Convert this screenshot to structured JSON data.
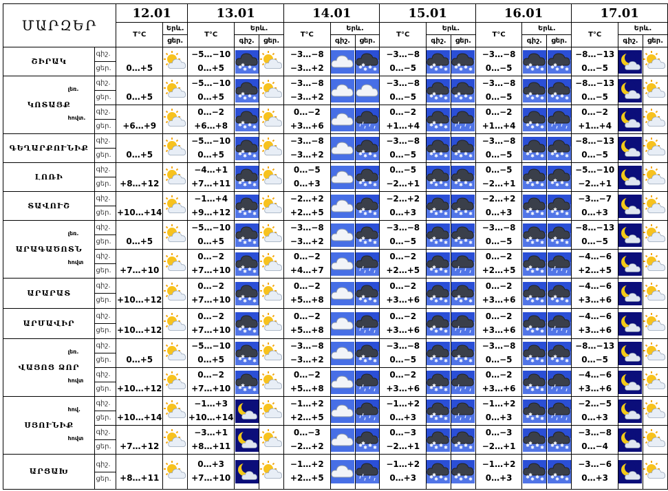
{
  "title": "ՄԱՐԶԵՐ",
  "dates": [
    "12.01",
    "13.01",
    "14.01",
    "15.01",
    "16.01",
    "17.01"
  ],
  "labels": {
    "temp": "Т°C",
    "sky": "Երև.",
    "night": "գիշ.",
    "day": "ցեր."
  },
  "rows": [
    {
      "name": "ՇԻՐԱԿ",
      "sub": "",
      "t": [
        [
          "",
          "0…+5"
        ],
        [
          "−5…−10",
          "0…+5"
        ],
        [
          "−3…−8",
          "−3…+2"
        ],
        [
          "−3…−8",
          "0…−5"
        ],
        [
          "−3…−8",
          "0…−5"
        ],
        [
          "−8…−13",
          "0…−5"
        ]
      ],
      "i": [
        [
          "sun_cloud"
        ],
        [
          "snow_cloud",
          "sun_cloud"
        ],
        [
          "cloud",
          "snow_cloud"
        ],
        [
          "snow_cloud",
          "snow_cloud"
        ],
        [
          "snow_cloud",
          "snow_cloud"
        ],
        [
          "moon_cloud",
          "sun_cloud"
        ]
      ]
    },
    {
      "name": "ԿՈՏԱՅՔ",
      "sub": "լեռ.",
      "t": [
        [
          "",
          "0…+5"
        ],
        [
          "−5…−10",
          "0…+5"
        ],
        [
          "−3…−8",
          "−3…+2"
        ],
        [
          "−3…−8",
          "0…−5"
        ],
        [
          "−3…−8",
          "0…−5"
        ],
        [
          "−8…−13",
          "0…−5"
        ]
      ],
      "i": [
        [
          "sun_cloud"
        ],
        [
          "snow_cloud",
          "sun_cloud"
        ],
        [
          "cloud",
          "cloud"
        ],
        [
          "snow_cloud",
          "snow_cloud"
        ],
        [
          "snow_cloud",
          "snow_cloud"
        ],
        [
          "moon_cloud",
          "sun_cloud"
        ]
      ]
    },
    {
      "name": "",
      "sub": "հովտ.",
      "t": [
        [
          "",
          "+6…+9"
        ],
        [
          "0…−2",
          "+6…+8"
        ],
        [
          "0…−2",
          "+3…+6"
        ],
        [
          "0…−2",
          "+1…+4"
        ],
        [
          "0…−2",
          "+1…+4"
        ],
        [
          "0…−2",
          "+1…+4"
        ]
      ],
      "i": [
        [
          "sun_cloud"
        ],
        [
          "snow_cloud",
          "sun_cloud"
        ],
        [
          "cloud",
          "rain_cloud"
        ],
        [
          "snow_cloud",
          "rain_cloud"
        ],
        [
          "snow_cloud",
          "rain_cloud"
        ],
        [
          "moon_cloud",
          "sun_cloud"
        ]
      ]
    },
    {
      "name": "ԳԵՂԱՐՔՈՒՆԻՔ",
      "sub": "",
      "t": [
        [
          "",
          "0…+5"
        ],
        [
          "−5…−10",
          "0…+5"
        ],
        [
          "−3…−8",
          "−3…+2"
        ],
        [
          "−3…−8",
          "0…−5"
        ],
        [
          "−3…−8",
          "0…−5"
        ],
        [
          "−8…−13",
          "0…−5"
        ]
      ],
      "i": [
        [
          "sun_cloud"
        ],
        [
          "snow_cloud",
          "sun_cloud"
        ],
        [
          "cloud",
          "snow_cloud"
        ],
        [
          "snow_cloud",
          "snow_cloud"
        ],
        [
          "snow_cloud",
          "snow_cloud"
        ],
        [
          "moon_cloud",
          "sun_cloud"
        ]
      ]
    },
    {
      "name": "ԼՈՌԻ",
      "sub": "",
      "t": [
        [
          "",
          "+8…+12"
        ],
        [
          "−4…+1",
          "+7…+11"
        ],
        [
          "0…−5",
          "0…+3"
        ],
        [
          "0…−5",
          "−2…+1"
        ],
        [
          "0…−5",
          "−2…+1"
        ],
        [
          "−5…−10",
          "−2…+1"
        ]
      ],
      "i": [
        [
          "sun_cloud"
        ],
        [
          "snow_cloud",
          "sun_cloud"
        ],
        [
          "cloud",
          "snow_cloud"
        ],
        [
          "snow_cloud",
          "snow_cloud"
        ],
        [
          "snow_cloud",
          "snow_cloud"
        ],
        [
          "moon_cloud",
          "sun_cloud"
        ]
      ]
    },
    {
      "name": "ՏԱՎՈՒՇ",
      "sub": "",
      "t": [
        [
          "",
          "+10…+14"
        ],
        [
          "−1…+4",
          "+9…+12"
        ],
        [
          "−2…+2",
          "+2…+5"
        ],
        [
          "−2…+2",
          "0…+3"
        ],
        [
          "−2…+2",
          "0…+3"
        ],
        [
          "−3…−7",
          "0…+3"
        ]
      ],
      "i": [
        [
          "sun_cloud"
        ],
        [
          "snow_cloud",
          "sun_cloud"
        ],
        [
          "cloud",
          "snow_cloud"
        ],
        [
          "snow_cloud",
          "snow_cloud"
        ],
        [
          "snow_cloud",
          "snow_cloud"
        ],
        [
          "moon_cloud",
          "sun_cloud"
        ]
      ]
    },
    {
      "name": "ԱՐԱԳԱԾՈՏՆ",
      "sub": "լեռ.",
      "t": [
        [
          "",
          "0…+5"
        ],
        [
          "−5…−10",
          "0…+5"
        ],
        [
          "−3…−8",
          "−3…+2"
        ],
        [
          "−3…−8",
          "0…−5"
        ],
        [
          "−3…−8",
          "0…−5"
        ],
        [
          "−8…−13",
          "0…−5"
        ]
      ],
      "i": [
        [
          "sun_cloud"
        ],
        [
          "snow_cloud",
          "sun_cloud"
        ],
        [
          "cloud",
          "snow_cloud"
        ],
        [
          "snow_cloud",
          "snow_cloud"
        ],
        [
          "snow_cloud",
          "snow_cloud"
        ],
        [
          "moon_cloud",
          "sun_cloud"
        ]
      ]
    },
    {
      "name": "",
      "sub": "հովտ",
      "t": [
        [
          "",
          "+7…+10"
        ],
        [
          "0…−2",
          "+7…+10"
        ],
        [
          "0…−2",
          "+4…+7"
        ],
        [
          "0…−2",
          "+2…+5"
        ],
        [
          "0…−2",
          "+2…+5"
        ],
        [
          "−4…−6",
          "+2…+5"
        ]
      ],
      "i": [
        [
          "sun_cloud"
        ],
        [
          "snow_cloud",
          "sun_cloud"
        ],
        [
          "cloud",
          "rain_cloud"
        ],
        [
          "snow_cloud",
          "rain_cloud"
        ],
        [
          "snow_cloud",
          "rain_cloud"
        ],
        [
          "moon_cloud",
          "sun_cloud"
        ]
      ]
    },
    {
      "name": "ԱՐԱՐԱՏ",
      "sub": "",
      "t": [
        [
          "",
          "+10…+12"
        ],
        [
          "0…−2",
          "+7…+10"
        ],
        [
          "0…−2",
          "+5…+8"
        ],
        [
          "0…−2",
          "+3…+6"
        ],
        [
          "0…−2",
          "+3…+6"
        ],
        [
          "−4…−6",
          "+3…+6"
        ]
      ],
      "i": [
        [
          "sun_cloud"
        ],
        [
          "snow_cloud",
          "sun_cloud"
        ],
        [
          "cloud",
          "snow_cloud"
        ],
        [
          "snow_cloud",
          "snow_cloud"
        ],
        [
          "snow_cloud",
          "snow_cloud"
        ],
        [
          "moon_cloud",
          "sun_cloud"
        ]
      ]
    },
    {
      "name": "ԱՐՄԱՎԻՐ",
      "sub": "",
      "t": [
        [
          "",
          "+10…+12"
        ],
        [
          "0…−2",
          "+7…+10"
        ],
        [
          "0…−2",
          "+5…+8"
        ],
        [
          "0…−2",
          "+3…+6"
        ],
        [
          "0…−2",
          "+3…+6"
        ],
        [
          "−4…−6",
          "+3…+6"
        ]
      ],
      "i": [
        [
          "sun_cloud"
        ],
        [
          "snow_cloud",
          "sun_cloud"
        ],
        [
          "cloud",
          "rain_cloud"
        ],
        [
          "snow_cloud",
          "rain_cloud"
        ],
        [
          "snow_cloud",
          "rain_cloud"
        ],
        [
          "moon_cloud",
          "sun_cloud"
        ]
      ]
    },
    {
      "name": "ՎԱՅՈՑ ՁՈՐ",
      "sub": "լեռ.",
      "t": [
        [
          "",
          "0…+5"
        ],
        [
          "−5…−10",
          "0…+5"
        ],
        [
          "−3…−8",
          "−3…+2"
        ],
        [
          "−3…−8",
          "0…−5"
        ],
        [
          "−3…−8",
          "0…−5"
        ],
        [
          "−8…−13",
          "0…−5"
        ]
      ],
      "i": [
        [
          "sun_cloud"
        ],
        [
          "snow_cloud",
          "sun_cloud"
        ],
        [
          "cloud",
          "snow_cloud"
        ],
        [
          "snow_cloud",
          "snow_cloud"
        ],
        [
          "snow_cloud",
          "snow_cloud"
        ],
        [
          "moon_cloud",
          "sun_cloud"
        ]
      ]
    },
    {
      "name": "",
      "sub": "հովտ",
      "t": [
        [
          "",
          "+10…+12"
        ],
        [
          "0…−2",
          "+7…+10"
        ],
        [
          "0…−2",
          "+5…+8"
        ],
        [
          "0…−2",
          "+3…+6"
        ],
        [
          "0…−2",
          "+3…+6"
        ],
        [
          "−4…−6",
          "+3…+6"
        ]
      ],
      "i": [
        [
          "sun_cloud"
        ],
        [
          "snow_cloud",
          "sun_cloud"
        ],
        [
          "cloud",
          "rain_cloud"
        ],
        [
          "snow_cloud",
          "rain_cloud"
        ],
        [
          "snow_cloud",
          "rain_cloud"
        ],
        [
          "moon_cloud",
          "sun_cloud"
        ]
      ]
    },
    {
      "name": "ՍՅՈՒՆԻՔ",
      "sub": "հով.",
      "t": [
        [
          "",
          "+10…+14"
        ],
        [
          "−1…+3",
          "+10…+14"
        ],
        [
          "−1…+2",
          "+2…+5"
        ],
        [
          "−1…+2",
          "0…+3"
        ],
        [
          "−1…+2",
          "0…+3"
        ],
        [
          "−2…−5",
          "0…+3"
        ]
      ],
      "i": [
        [
          "sun_cloud"
        ],
        [
          "moon_cloud",
          "sun_cloud"
        ],
        [
          "cloud",
          "rain_cloud"
        ],
        [
          "snow_cloud",
          "rain_cloud"
        ],
        [
          "snow_cloud",
          "rain_cloud"
        ],
        [
          "moon_cloud",
          "sun_cloud"
        ]
      ]
    },
    {
      "name": "",
      "sub": "հովտ",
      "t": [
        [
          "",
          "+7…+12"
        ],
        [
          "−3…+1",
          "+8…+11"
        ],
        [
          "0…−3",
          "−2…+2"
        ],
        [
          "0…−3",
          "−2…+1"
        ],
        [
          "0…−3",
          "−2…+1"
        ],
        [
          "−3…−8",
          "0…−4"
        ]
      ],
      "i": [
        [
          "sun_cloud"
        ],
        [
          "moon_cloud",
          "sun_cloud"
        ],
        [
          "cloud",
          "snow_cloud"
        ],
        [
          "snow_cloud",
          "snow_cloud"
        ],
        [
          "snow_cloud",
          "snow_cloud"
        ],
        [
          "moon_cloud",
          "sun_cloud"
        ]
      ]
    },
    {
      "name": "ԱՐՑԱԽ",
      "sub": "",
      "t": [
        [
          "",
          "+8…+11"
        ],
        [
          "0…+3",
          "+7…+10"
        ],
        [
          "−1…+2",
          "+2…+5"
        ],
        [
          "−1…+2",
          "0…+3"
        ],
        [
          "−1…+2",
          "0…+3"
        ],
        [
          "−3…−6",
          "0…+3"
        ]
      ],
      "i": [
        [
          "sun_cloud"
        ],
        [
          "moon_cloud",
          "sun_cloud"
        ],
        [
          "cloud",
          "rain_cloud"
        ],
        [
          "snow_cloud",
          "snow_cloud"
        ],
        [
          "snow_cloud",
          "snow_cloud"
        ],
        [
          "moon_cloud",
          "sun_cloud"
        ]
      ]
    }
  ]
}
